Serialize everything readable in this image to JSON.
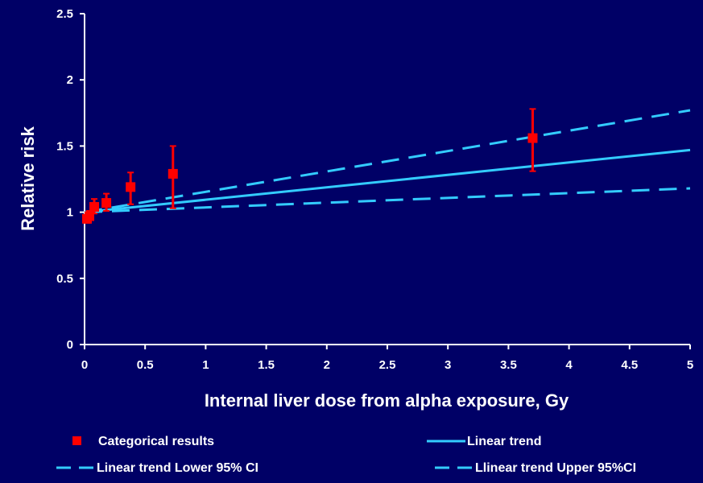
{
  "chart_data": {
    "type": "scatter",
    "title": "",
    "xlabel": "Internal liver dose from alpha exposure, Gy",
    "ylabel": "Relative risk",
    "xlim": [
      0,
      5
    ],
    "ylim": [
      0,
      2.5
    ],
    "x_ticks": [
      "0",
      "0.5",
      "1",
      "1.5",
      "2",
      "2.5",
      "3",
      "3.5",
      "4",
      "4.5",
      "5"
    ],
    "y_ticks": [
      "0",
      "0.5",
      "1",
      "1.5",
      "2",
      "2.5"
    ],
    "grid": false,
    "legend_position": "bottom",
    "colors": {
      "background": "#000066",
      "points": "#ff0000",
      "lines": "#33ccff",
      "text": "#ffffff"
    },
    "series": [
      {
        "name": "Categorical results",
        "kind": "points_with_error_bars",
        "points": [
          {
            "x": 0.02,
            "y": 0.95,
            "lo": 0.92,
            "hi": 0.98
          },
          {
            "x": 0.04,
            "y": 0.97,
            "lo": 0.94,
            "hi": 1.01
          },
          {
            "x": 0.08,
            "y": 1.04,
            "lo": 0.99,
            "hi": 1.1
          },
          {
            "x": 0.18,
            "y": 1.07,
            "lo": 1.01,
            "hi": 1.14
          },
          {
            "x": 0.38,
            "y": 1.19,
            "lo": 1.06,
            "hi": 1.3
          },
          {
            "x": 0.73,
            "y": 1.29,
            "lo": 1.03,
            "hi": 1.5
          },
          {
            "x": 3.7,
            "y": 1.56,
            "lo": 1.31,
            "hi": 1.78
          }
        ]
      },
      {
        "name": "Linear trend",
        "kind": "line",
        "x": [
          0,
          5
        ],
        "y": [
          1.0,
          1.47
        ]
      },
      {
        "name": "Linear trend Lower 95% CI",
        "kind": "dashed_line",
        "x": [
          0,
          5
        ],
        "y": [
          1.0,
          1.18
        ]
      },
      {
        "name": "Llinear trend Upper 95%CI",
        "kind": "dashed_line",
        "x": [
          0,
          5
        ],
        "y": [
          1.0,
          1.77
        ]
      }
    ]
  }
}
